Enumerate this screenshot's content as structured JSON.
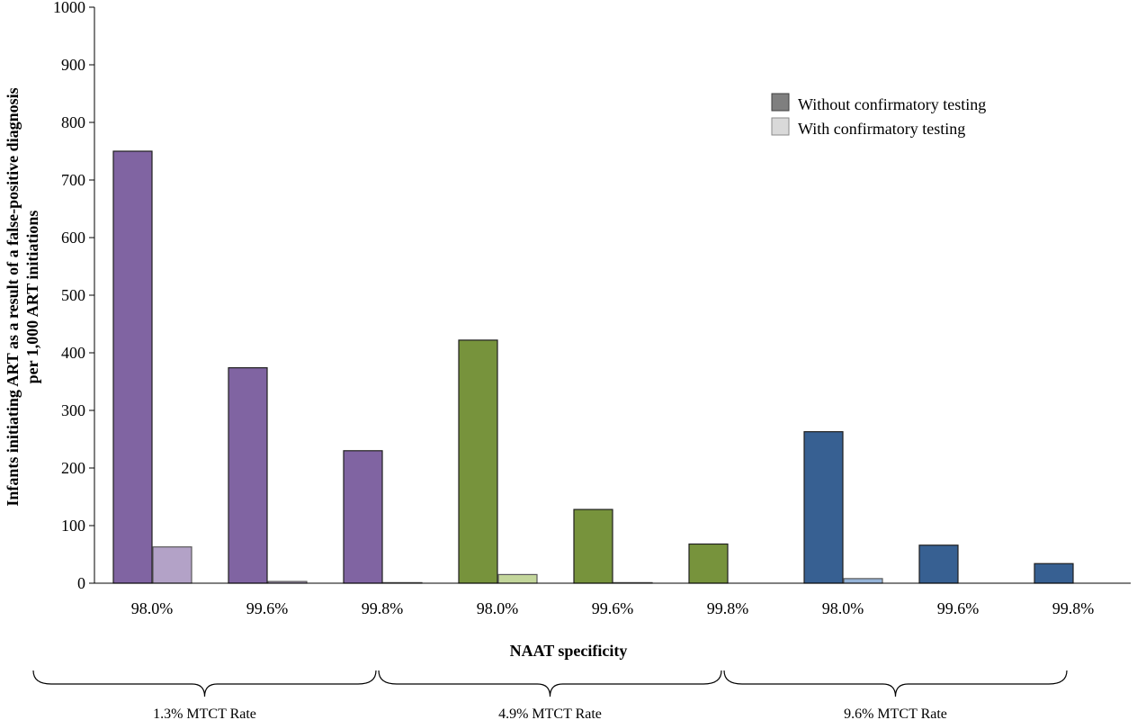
{
  "chart_data": {
    "type": "bar",
    "ylabel_line1": "Infants initiating ART as a result of a false-positive diagnosis",
    "ylabel_line2": "per 1,000 ART initiations",
    "xlabel": "NAAT specificity",
    "ylim": [
      0,
      1000
    ],
    "yticks": [
      "0",
      "100",
      "200",
      "300",
      "400",
      "500",
      "600",
      "700",
      "800",
      "900",
      "1000"
    ],
    "categories": [
      "98.0%",
      "99.6%",
      "99.8%",
      "98.0%",
      "99.6%",
      "99.8%",
      "98.0%",
      "99.6%",
      "99.8%"
    ],
    "groups": [
      {
        "label": "1.3% MTCT Rate",
        "color_dark": "#8064a2",
        "color_light": "#b3a2c7"
      },
      {
        "label": "4.9% MTCT Rate",
        "color_dark": "#77933c",
        "color_light": "#c3d69b"
      },
      {
        "label": "9.6% MTCT Rate",
        "color_dark": "#376092",
        "color_light": "#95b3d7"
      }
    ],
    "series": [
      {
        "name": "Without confirmatory testing",
        "legend_color": "#7f7f7f",
        "values": [
          750,
          374,
          230,
          422,
          128,
          68,
          263,
          66,
          34
        ]
      },
      {
        "name": "With confirmatory testing",
        "legend_color": "#d9d9d9",
        "values": [
          63,
          3,
          1,
          15,
          1,
          0,
          8,
          0,
          0
        ]
      }
    ],
    "legend_position": "top-right",
    "grid": false
  }
}
